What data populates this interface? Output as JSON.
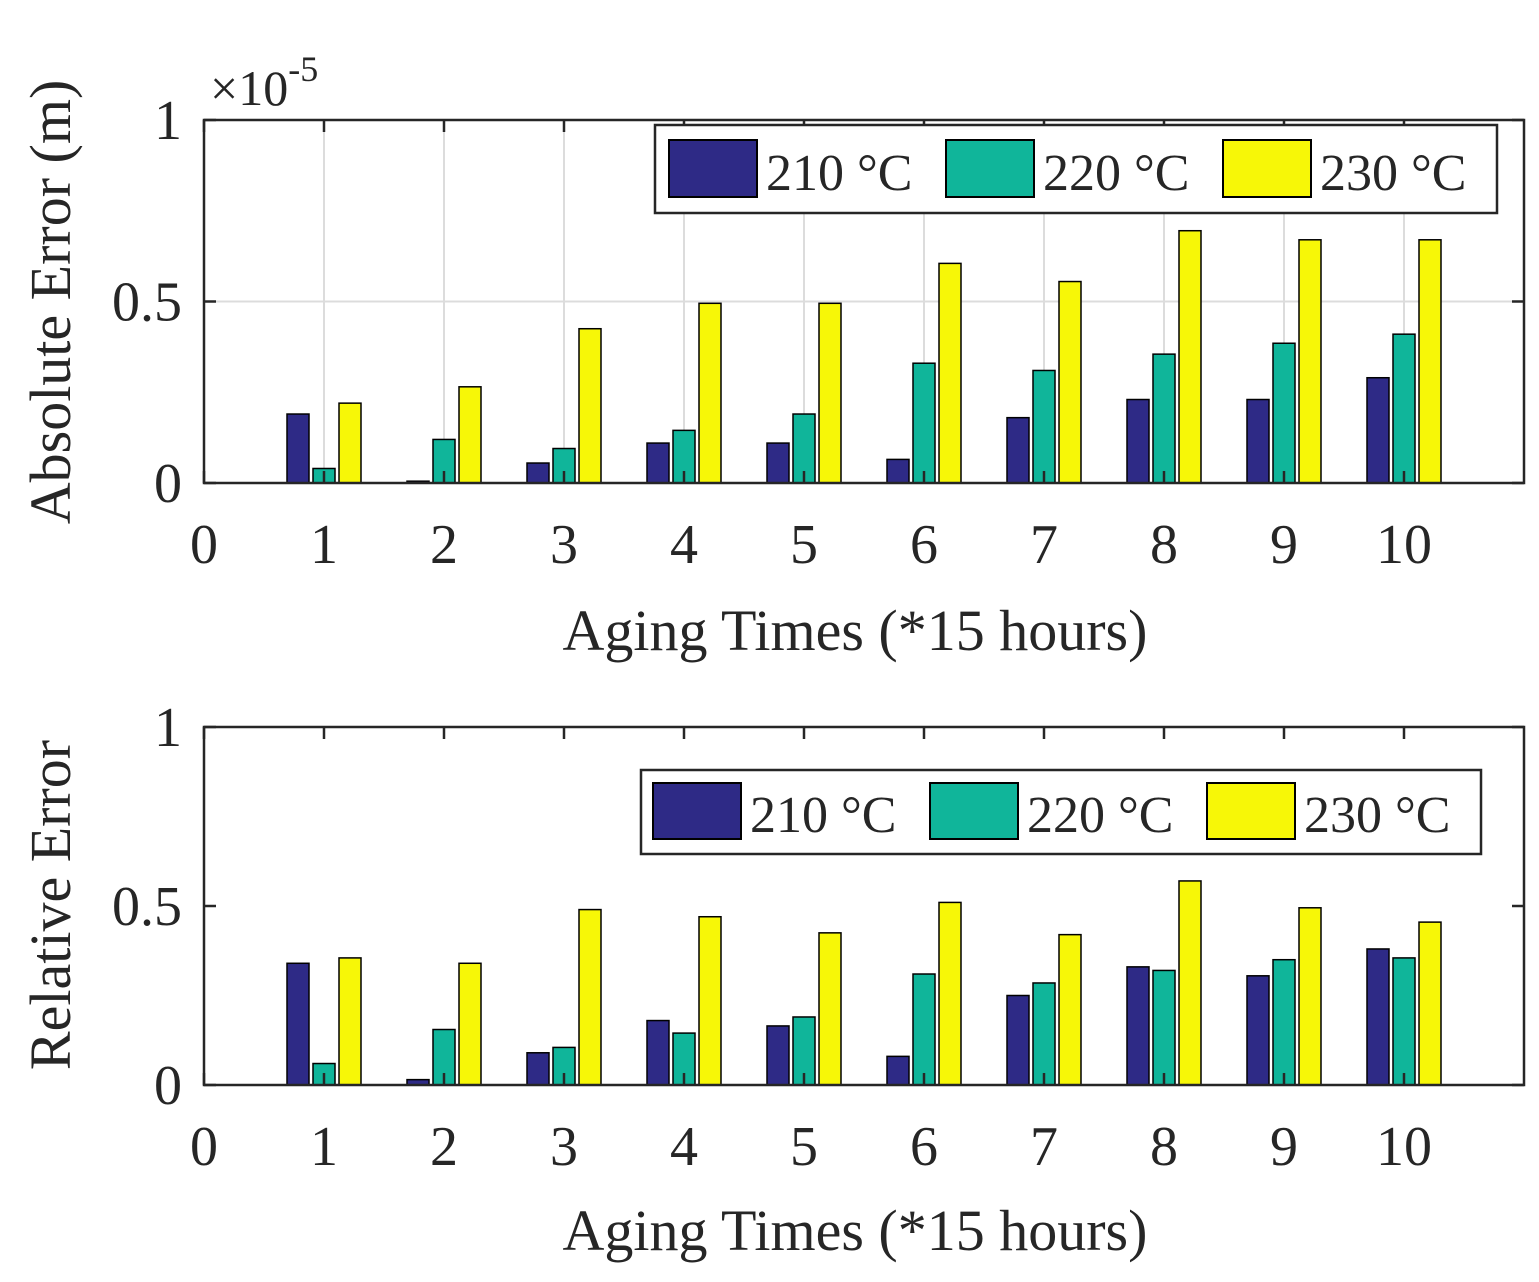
{
  "chart_data": [
    {
      "type": "bar",
      "xlabel": "Aging Times (*15 hours)",
      "ylabel": "Absolute Error (m)",
      "exponent_base": "×10",
      "exponent_power": "-5",
      "xlim": [
        0,
        11
      ],
      "ylim": [
        0,
        1
      ],
      "xticks": [
        "0",
        "1",
        "2",
        "3",
        "4",
        "5",
        "6",
        "7",
        "8",
        "9",
        "10"
      ],
      "yticks": [
        "0",
        "0.5",
        "1"
      ],
      "grid": true,
      "legend_position": "top-right",
      "categories": [
        1,
        2,
        3,
        4,
        5,
        6,
        7,
        8,
        9,
        10
      ],
      "series": [
        {
          "name": "210 °C",
          "color": "#2e2a86",
          "values": [
            0.19,
            0.005,
            0.055,
            0.11,
            0.11,
            0.065,
            0.18,
            0.23,
            0.23,
            0.29
          ]
        },
        {
          "name": "220 °C",
          "color": "#10b59a",
          "values": [
            0.04,
            0.12,
            0.095,
            0.145,
            0.19,
            0.33,
            0.31,
            0.355,
            0.385,
            0.41
          ]
        },
        {
          "name": "230 °C",
          "color": "#f7f707",
          "values": [
            0.22,
            0.265,
            0.425,
            0.495,
            0.495,
            0.605,
            0.555,
            0.695,
            0.67,
            0.67
          ]
        }
      ]
    },
    {
      "type": "bar",
      "xlabel": "Aging Times (*15 hours)",
      "ylabel": "Relative Error",
      "xlim": [
        0,
        11
      ],
      "ylim": [
        0,
        1
      ],
      "xticks": [
        "0",
        "1",
        "2",
        "3",
        "4",
        "5",
        "6",
        "7",
        "8",
        "9",
        "10"
      ],
      "yticks": [
        "0",
        "0.5",
        "1"
      ],
      "grid": false,
      "legend_position": "top-right",
      "categories": [
        1,
        2,
        3,
        4,
        5,
        6,
        7,
        8,
        9,
        10
      ],
      "series": [
        {
          "name": "210 °C",
          "color": "#2e2a86",
          "values": [
            0.34,
            0.015,
            0.09,
            0.18,
            0.165,
            0.08,
            0.25,
            0.33,
            0.305,
            0.38
          ]
        },
        {
          "name": "220 °C",
          "color": "#10b59a",
          "values": [
            0.06,
            0.155,
            0.105,
            0.145,
            0.19,
            0.31,
            0.285,
            0.32,
            0.35,
            0.355
          ]
        },
        {
          "name": "230 °C",
          "color": "#f7f707",
          "values": [
            0.355,
            0.34,
            0.49,
            0.47,
            0.425,
            0.51,
            0.42,
            0.57,
            0.495,
            0.455
          ]
        }
      ]
    }
  ]
}
